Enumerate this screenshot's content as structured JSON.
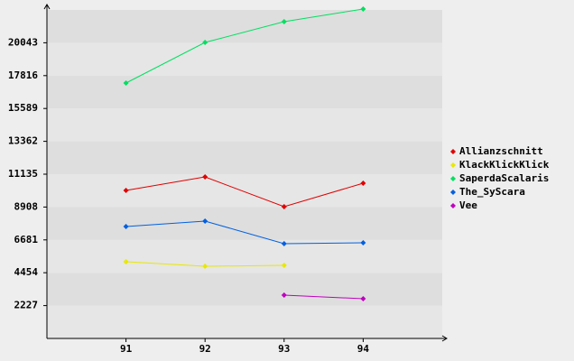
{
  "chart_data": {
    "type": "line",
    "categories": [
      "91",
      "92",
      "93",
      "94"
    ],
    "series": [
      {
        "name": "Allianzschnitt",
        "color": "#e00000",
        "values": [
          10034,
          10951,
          8932,
          10523
        ]
      },
      {
        "name": "KlackKlickKlick",
        "color": "#e8e800",
        "values": [
          5200,
          4894,
          4956,
          null
        ]
      },
      {
        "name": "SaperdaScalaris",
        "color": "#00e060",
        "values": [
          17314,
          20067,
          21474,
          22331
        ]
      },
      {
        "name": "The_SyScara",
        "color": "#0060e0",
        "values": [
          7586,
          7953,
          6424,
          6485
        ]
      },
      {
        "name": "Vee",
        "color": "#c000c0",
        "values": [
          null,
          null,
          2937,
          2692
        ]
      }
    ],
    "ylim": [
      0,
      22270
    ],
    "yticks": [
      2227,
      4454,
      6681,
      8908,
      11135,
      13362,
      15589,
      17816,
      20043
    ],
    "grid": true
  }
}
